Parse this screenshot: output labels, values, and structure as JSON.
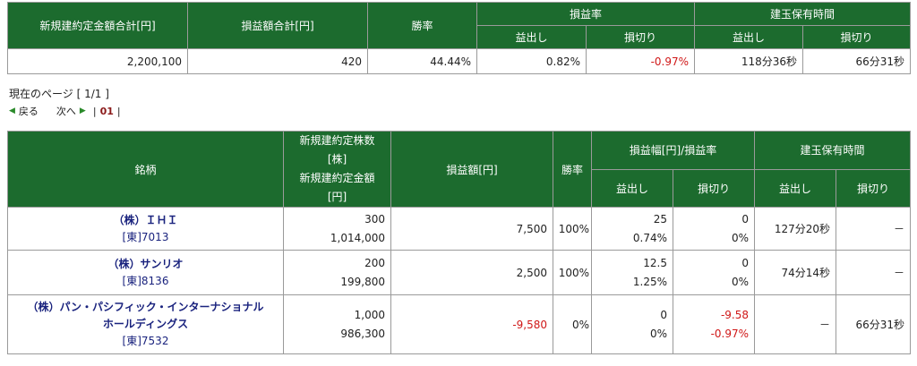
{
  "summary": {
    "headers": {
      "total_amount": "新規建約定金額合計[円]",
      "total_pl": "損益額合計[円]",
      "win_rate": "勝率",
      "pl_rate": "損益率",
      "holding_time": "建玉保有時間",
      "profit": "益出し",
      "loss": "損切り"
    },
    "values": {
      "total_amount": "2,200,100",
      "total_pl": "420",
      "win_rate": "44.44%",
      "pl_rate_profit": "0.82%",
      "pl_rate_loss": "-0.97%",
      "holding_profit": "118分36秒",
      "holding_loss": "66分31秒"
    }
  },
  "pager": {
    "current_page_label": "現在のページ [ 1/1 ]",
    "back_label": "戻る",
    "next_label": "次へ",
    "page_link": "01"
  },
  "detail": {
    "headers": {
      "stock": "銘柄",
      "qty_line1": "新規建約定株数",
      "qty_line2": "[株]",
      "amt_line1": "新規建約定金額",
      "amt_line2": "[円]",
      "pl": "損益額[円]",
      "win_rate": "勝率",
      "pl_range": "損益幅[円]/損益率",
      "holding_time": "建玉保有時間",
      "profit": "益出し",
      "loss": "損切り"
    },
    "rows": [
      {
        "name": "（株）ＩＨＩ",
        "name2": "",
        "code": "[東]7013",
        "qty": "300",
        "amount": "1,014,000",
        "pl": "7,500",
        "win_rate": "100%",
        "profit_range": "25",
        "profit_rate": "0.74%",
        "loss_range": "0",
        "loss_rate": "0%",
        "hold_profit": "127分20秒",
        "hold_loss": "－"
      },
      {
        "name": "（株）サンリオ",
        "name2": "",
        "code": "[東]8136",
        "qty": "200",
        "amount": "199,800",
        "pl": "2,500",
        "win_rate": "100%",
        "profit_range": "12.5",
        "profit_rate": "1.25%",
        "loss_range": "0",
        "loss_rate": "0%",
        "hold_profit": "74分14秒",
        "hold_loss": "－"
      },
      {
        "name": "（株）パン・パシフィック・インターナショナル",
        "name2": "ホールディングス",
        "code": "[東]7532",
        "qty": "1,000",
        "amount": "986,300",
        "pl": "-9,580",
        "win_rate": "0%",
        "profit_range": "0",
        "profit_rate": "0%",
        "loss_range": "-9.58",
        "loss_rate": "-0.97%",
        "hold_profit": "－",
        "hold_loss": "66分31秒"
      }
    ]
  },
  "colors": {
    "header_bg": "#1c6b2e",
    "negative": "#d01818",
    "stock_name": "#1a237e"
  }
}
